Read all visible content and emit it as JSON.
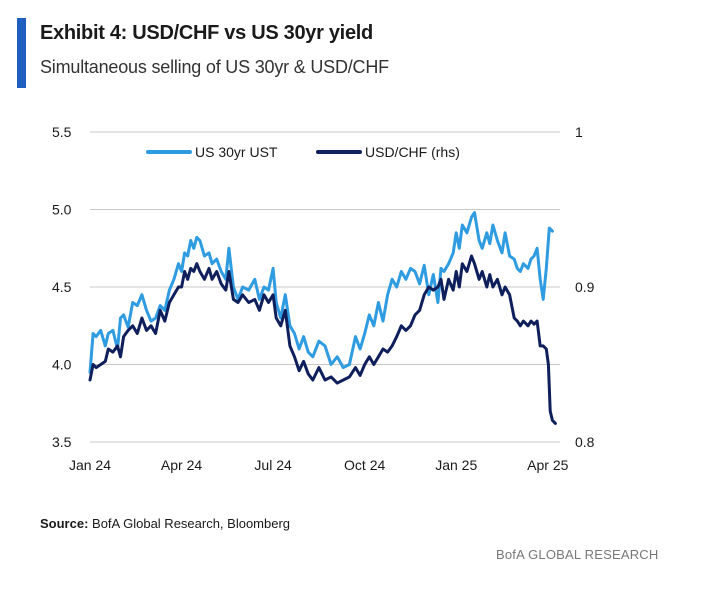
{
  "header": {
    "title": "Exhibit 4: USD/CHF vs US 30yr yield",
    "subtitle": "Simultaneous selling of US 30yr & USD/CHF"
  },
  "footer": {
    "source_label": "Source:",
    "source_text": "BofA Global Research, Bloomberg",
    "brand": "BofA GLOBAL RESEARCH"
  },
  "colors": {
    "accent": "#1f5fbf",
    "us30": "#2f9be0",
    "usdchf": "#0f1f5c",
    "grid": "#c8c8c8"
  },
  "chart_data": {
    "type": "line",
    "title": "Exhibit 4: USD/CHF vs US 30yr yield",
    "legend_position": "top-center",
    "grid": true,
    "x_range": [
      0,
      15.4
    ],
    "x_ticks": [
      {
        "pos": 0,
        "label": "Jan 24"
      },
      {
        "pos": 3,
        "label": "Apr 24"
      },
      {
        "pos": 6,
        "label": "Jul 24"
      },
      {
        "pos": 9,
        "label": "Oct 24"
      },
      {
        "pos": 12,
        "label": "Jan 25"
      },
      {
        "pos": 15,
        "label": "Apr 25"
      }
    ],
    "y_left": {
      "min": 3.5,
      "max": 5.5,
      "ticks": [
        "3.5",
        "4.0",
        "4.5",
        "5.0",
        "5.5"
      ]
    },
    "y_right": {
      "min": 0.8,
      "max": 1.0,
      "ticks": [
        "0.8",
        "0.9",
        "1"
      ],
      "label": "rhs"
    },
    "series": [
      {
        "name": "US 30yr UST",
        "axis": "left",
        "x": [
          0,
          0.1,
          0.2,
          0.35,
          0.5,
          0.6,
          0.75,
          0.9,
          1.0,
          1.1,
          1.25,
          1.4,
          1.55,
          1.7,
          1.85,
          2.0,
          2.15,
          2.3,
          2.45,
          2.6,
          2.75,
          2.9,
          3.0,
          3.1,
          3.2,
          3.3,
          3.4,
          3.5,
          3.6,
          3.75,
          3.9,
          4.0,
          4.15,
          4.3,
          4.45,
          4.55,
          4.7,
          4.85,
          5.0,
          5.2,
          5.4,
          5.55,
          5.7,
          5.85,
          6.0,
          6.1,
          6.25,
          6.4,
          6.55,
          6.7,
          6.85,
          7.0,
          7.15,
          7.3,
          7.5,
          7.7,
          7.9,
          8.1,
          8.3,
          8.5,
          8.7,
          8.85,
          9.0,
          9.15,
          9.3,
          9.45,
          9.6,
          9.75,
          9.9,
          10.05,
          10.2,
          10.35,
          10.5,
          10.65,
          10.8,
          10.95,
          11.1,
          11.25,
          11.4,
          11.5,
          11.6,
          11.75,
          11.9,
          12.0,
          12.1,
          12.2,
          12.35,
          12.5,
          12.6,
          12.75,
          12.85,
          13.0,
          13.1,
          13.2,
          13.35,
          13.5,
          13.6,
          13.75,
          13.9,
          14.0,
          14.1,
          14.2,
          14.35,
          14.45,
          14.55,
          14.65,
          14.75,
          14.85,
          14.95,
          15.05,
          15.15
        ],
        "y": [
          3.95,
          4.2,
          4.18,
          4.22,
          4.12,
          4.2,
          4.22,
          4.1,
          4.3,
          4.32,
          4.24,
          4.4,
          4.38,
          4.45,
          4.35,
          4.28,
          4.3,
          4.38,
          4.35,
          4.48,
          4.55,
          4.65,
          4.6,
          4.72,
          4.7,
          4.8,
          4.75,
          4.82,
          4.8,
          4.7,
          4.72,
          4.65,
          4.68,
          4.6,
          4.55,
          4.75,
          4.5,
          4.42,
          4.5,
          4.48,
          4.55,
          4.42,
          4.5,
          4.48,
          4.62,
          4.4,
          4.3,
          4.45,
          4.25,
          4.2,
          4.1,
          4.18,
          4.08,
          4.05,
          4.15,
          4.12,
          4.0,
          4.05,
          3.98,
          4.0,
          4.18,
          4.1,
          4.2,
          4.32,
          4.25,
          4.4,
          4.28,
          4.45,
          4.55,
          4.5,
          4.6,
          4.55,
          4.62,
          4.6,
          4.52,
          4.64,
          4.45,
          4.58,
          4.4,
          4.62,
          4.6,
          4.65,
          4.72,
          4.85,
          4.75,
          4.9,
          4.85,
          4.95,
          4.98,
          4.8,
          4.75,
          4.85,
          4.78,
          4.9,
          4.8,
          4.72,
          4.85,
          4.7,
          4.68,
          4.62,
          4.6,
          4.65,
          4.62,
          4.68,
          4.7,
          4.75,
          4.55,
          4.42,
          4.62,
          4.88,
          4.86
        ]
      },
      {
        "name": "USD/CHF (rhs)",
        "axis": "right",
        "x": [
          0,
          0.1,
          0.2,
          0.35,
          0.5,
          0.6,
          0.75,
          0.9,
          1.0,
          1.1,
          1.25,
          1.4,
          1.55,
          1.7,
          1.85,
          2.0,
          2.15,
          2.3,
          2.45,
          2.6,
          2.75,
          2.9,
          3.0,
          3.1,
          3.2,
          3.3,
          3.4,
          3.5,
          3.6,
          3.75,
          3.9,
          4.0,
          4.15,
          4.3,
          4.45,
          4.55,
          4.7,
          4.85,
          5.0,
          5.2,
          5.4,
          5.55,
          5.7,
          5.85,
          6.0,
          6.1,
          6.25,
          6.4,
          6.55,
          6.7,
          6.85,
          7.0,
          7.15,
          7.3,
          7.5,
          7.7,
          7.9,
          8.1,
          8.3,
          8.5,
          8.7,
          8.85,
          9.0,
          9.15,
          9.3,
          9.45,
          9.6,
          9.75,
          9.9,
          10.05,
          10.2,
          10.35,
          10.5,
          10.65,
          10.8,
          10.95,
          11.1,
          11.25,
          11.4,
          11.5,
          11.6,
          11.75,
          11.9,
          12.0,
          12.1,
          12.2,
          12.35,
          12.5,
          12.6,
          12.75,
          12.85,
          13.0,
          13.1,
          13.2,
          13.35,
          13.5,
          13.6,
          13.75,
          13.9,
          14.0,
          14.1,
          14.2,
          14.35,
          14.45,
          14.55,
          14.65,
          14.75,
          14.85,
          14.95,
          15.02,
          15.08,
          15.15,
          15.25
        ],
        "y": [
          0.84,
          0.85,
          0.848,
          0.85,
          0.852,
          0.86,
          0.858,
          0.862,
          0.855,
          0.868,
          0.872,
          0.875,
          0.87,
          0.88,
          0.872,
          0.875,
          0.87,
          0.885,
          0.878,
          0.89,
          0.895,
          0.9,
          0.9,
          0.91,
          0.905,
          0.912,
          0.91,
          0.915,
          0.91,
          0.905,
          0.912,
          0.905,
          0.91,
          0.902,
          0.898,
          0.91,
          0.892,
          0.89,
          0.895,
          0.89,
          0.892,
          0.885,
          0.895,
          0.89,
          0.895,
          0.88,
          0.875,
          0.885,
          0.862,
          0.855,
          0.846,
          0.852,
          0.844,
          0.84,
          0.848,
          0.84,
          0.842,
          0.838,
          0.84,
          0.842,
          0.848,
          0.843,
          0.85,
          0.855,
          0.85,
          0.855,
          0.86,
          0.858,
          0.862,
          0.868,
          0.875,
          0.872,
          0.875,
          0.882,
          0.885,
          0.895,
          0.9,
          0.898,
          0.9,
          0.905,
          0.892,
          0.905,
          0.898,
          0.91,
          0.9,
          0.915,
          0.91,
          0.92,
          0.915,
          0.905,
          0.91,
          0.9,
          0.908,
          0.9,
          0.905,
          0.895,
          0.9,
          0.895,
          0.88,
          0.878,
          0.875,
          0.878,
          0.875,
          0.878,
          0.876,
          0.878,
          0.862,
          0.862,
          0.86,
          0.85,
          0.82,
          0.814,
          0.812
        ]
      }
    ]
  }
}
